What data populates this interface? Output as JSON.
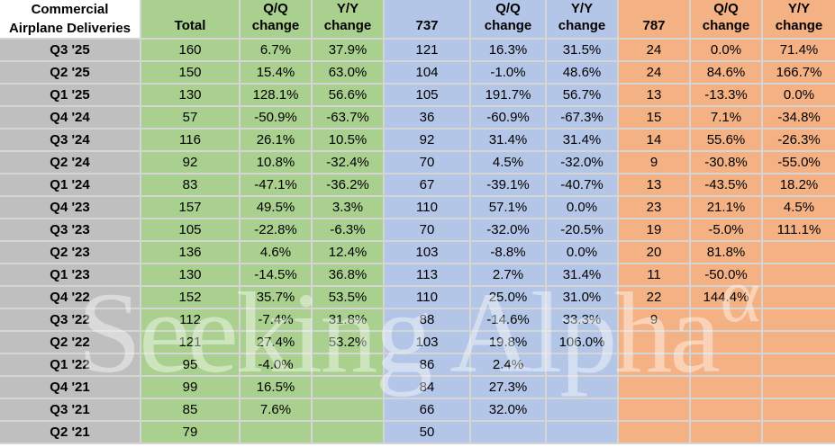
{
  "chart_data": {
    "type": "table",
    "title": "Commercial Airplane Deliveries",
    "title_lines": [
      "Commercial",
      "Airplane Deliveries"
    ],
    "sections": [
      "Total",
      "737",
      "787"
    ],
    "columns": [
      "Total",
      "Q/Q change",
      "Y/Y change",
      "737",
      "Q/Q change",
      "Y/Y change",
      "787",
      "Q/Q change",
      "Y/Y change"
    ],
    "rows": [
      {
        "label": "Q3 '25",
        "values": [
          "160",
          "6.7%",
          "37.9%",
          "121",
          "16.3%",
          "31.5%",
          "24",
          "0.0%",
          "71.4%"
        ]
      },
      {
        "label": "Q2 '25",
        "values": [
          "150",
          "15.4%",
          "63.0%",
          "104",
          "-1.0%",
          "48.6%",
          "24",
          "84.6%",
          "166.7%"
        ]
      },
      {
        "label": "Q1 '25",
        "values": [
          "130",
          "128.1%",
          "56.6%",
          "105",
          "191.7%",
          "56.7%",
          "13",
          "-13.3%",
          "0.0%"
        ]
      },
      {
        "label": "Q4 '24",
        "values": [
          "57",
          "-50.9%",
          "-63.7%",
          "36",
          "-60.9%",
          "-67.3%",
          "15",
          "7.1%",
          "-34.8%"
        ]
      },
      {
        "label": "Q3 '24",
        "values": [
          "116",
          "26.1%",
          "10.5%",
          "92",
          "31.4%",
          "31.4%",
          "14",
          "55.6%",
          "-26.3%"
        ]
      },
      {
        "label": "Q2 '24",
        "values": [
          "92",
          "10.8%",
          "-32.4%",
          "70",
          "4.5%",
          "-32.0%",
          "9",
          "-30.8%",
          "-55.0%"
        ]
      },
      {
        "label": "Q1 '24",
        "values": [
          "83",
          "-47.1%",
          "-36.2%",
          "67",
          "-39.1%",
          "-40.7%",
          "13",
          "-43.5%",
          "18.2%"
        ]
      },
      {
        "label": "Q4 '23",
        "values": [
          "157",
          "49.5%",
          "3.3%",
          "110",
          "57.1%",
          "0.0%",
          "23",
          "21.1%",
          "4.5%"
        ]
      },
      {
        "label": "Q3 '23",
        "values": [
          "105",
          "-22.8%",
          "-6.3%",
          "70",
          "-32.0%",
          "-20.5%",
          "19",
          "-5.0%",
          "111.1%"
        ]
      },
      {
        "label": "Q2 '23",
        "values": [
          "136",
          "4.6%",
          "12.4%",
          "103",
          "-8.8%",
          "0.0%",
          "20",
          "81.8%",
          ""
        ]
      },
      {
        "label": "Q1 '23",
        "values": [
          "130",
          "-14.5%",
          "36.8%",
          "113",
          "2.7%",
          "31.4%",
          "11",
          "-50.0%",
          ""
        ]
      },
      {
        "label": "Q4 '22",
        "values": [
          "152",
          "35.7%",
          "53.5%",
          "110",
          "25.0%",
          "31.0%",
          "22",
          "144.4%",
          ""
        ]
      },
      {
        "label": "Q3 '22",
        "values": [
          "112",
          "-7.4%",
          "31.8%",
          "88",
          "-14.6%",
          "33.3%",
          "9",
          "",
          ""
        ]
      },
      {
        "label": "Q2 '22",
        "values": [
          "121",
          "27.4%",
          "53.2%",
          "103",
          "19.8%",
          "106.0%",
          "",
          "",
          ""
        ]
      },
      {
        "label": "Q1 '22",
        "values": [
          "95",
          "-4.0%",
          "",
          "86",
          "2.4%",
          "",
          "",
          "",
          ""
        ]
      },
      {
        "label": "Q4 '21",
        "values": [
          "99",
          "16.5%",
          "",
          "84",
          "27.3%",
          "",
          "",
          "",
          ""
        ]
      },
      {
        "label": "Q3 '21",
        "values": [
          "85",
          "7.6%",
          "",
          "66",
          "32.0%",
          "",
          "",
          "",
          ""
        ]
      },
      {
        "label": "Q2 '21",
        "values": [
          "79",
          "",
          "",
          "50",
          "",
          "",
          "",
          "",
          ""
        ]
      }
    ]
  },
  "colors": {
    "total_section": "#A9D08E",
    "b737_section": "#B4C6E7",
    "b787_section": "#F4B183",
    "label_column": "#BFBFBF",
    "gridline": "#D5D5D5"
  },
  "watermark": {
    "text": "Seeking Alpha",
    "alpha_symbol": "α"
  }
}
